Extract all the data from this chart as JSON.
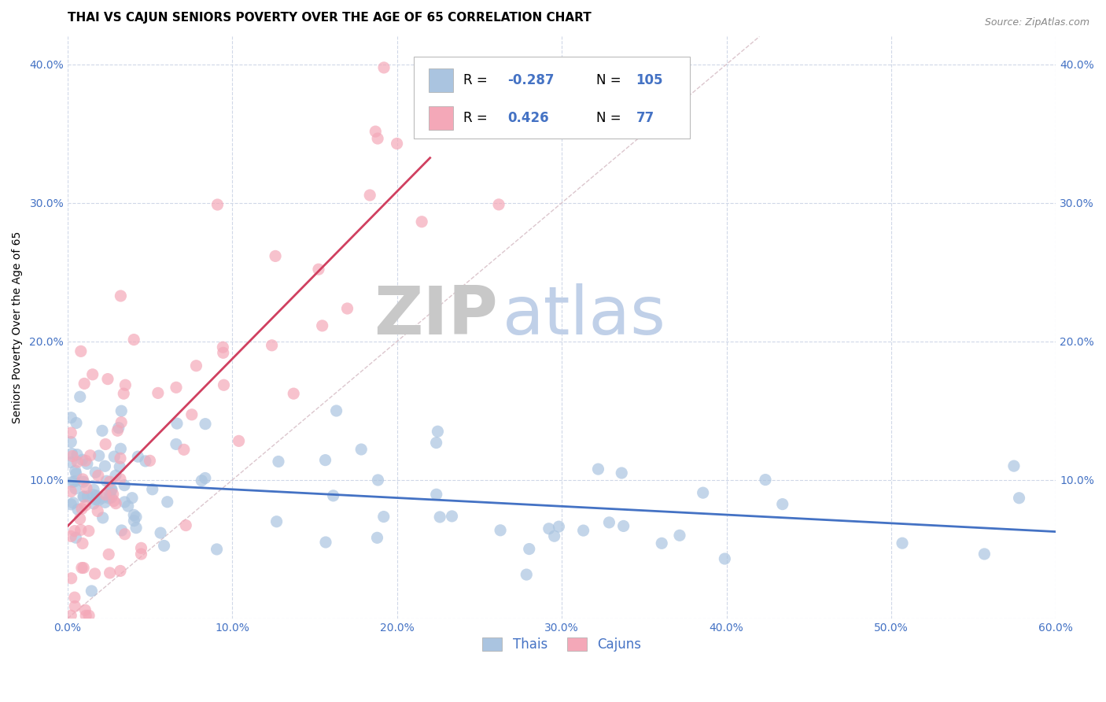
{
  "title": "THAI VS CAJUN SENIORS POVERTY OVER THE AGE OF 65 CORRELATION CHART",
  "source": "Source: ZipAtlas.com",
  "ylabel": "Seniors Poverty Over the Age of 65",
  "watermark_zip": "ZIP",
  "watermark_atlas": "atlas",
  "xlim": [
    0.0,
    0.6
  ],
  "ylim": [
    0.0,
    0.42
  ],
  "xticks": [
    0.0,
    0.1,
    0.2,
    0.3,
    0.4,
    0.5,
    0.6
  ],
  "xticklabels": [
    "0.0%",
    "10.0%",
    "20.0%",
    "30.0%",
    "40.0%",
    "50.0%",
    "60.0%"
  ],
  "yticks": [
    0.0,
    0.1,
    0.2,
    0.3,
    0.4
  ],
  "yticklabels": [
    "",
    "10.0%",
    "20.0%",
    "30.0%",
    "40.0%"
  ],
  "right_yticklabels": [
    "",
    "10.0%",
    "20.0%",
    "30.0%",
    "40.0%"
  ],
  "thai_R": -0.287,
  "thai_N": 105,
  "cajun_R": 0.426,
  "cajun_N": 77,
  "thai_color": "#aac4e0",
  "cajun_color": "#f4a8b8",
  "thai_line_color": "#4472c4",
  "cajun_line_color": "#d04060",
  "diagonal_line_color": "#d8c0c8",
  "tick_color": "#4472c4",
  "background_color": "#ffffff",
  "grid_color": "#d0d8e8",
  "title_fontsize": 11,
  "axis_fontsize": 10,
  "tick_fontsize": 10
}
